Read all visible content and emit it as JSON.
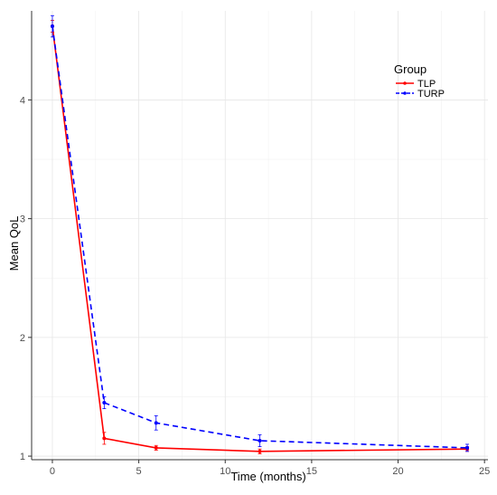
{
  "chart_data": {
    "type": "line",
    "title": "",
    "xlabel": "Time (months)",
    "ylabel": "Mean QoL",
    "xlim": [
      -1.2,
      25.2
    ],
    "ylim": [
      0.97,
      4.75
    ],
    "x_ticks": [
      0,
      5,
      10,
      15,
      20,
      25
    ],
    "y_ticks": [
      1,
      2,
      3,
      4
    ],
    "grid": true,
    "legend": {
      "title": "Group",
      "placement": "top-right inside"
    },
    "series": [
      {
        "name": "TLP",
        "color": "#ff0000",
        "line_style": "solid",
        "x": [
          0,
          3,
          6,
          12,
          24
        ],
        "y": [
          4.62,
          1.15,
          1.07,
          1.04,
          1.06
        ],
        "error": [
          0.05,
          0.05,
          0.02,
          0.02,
          0.02
        ]
      },
      {
        "name": "TURP",
        "color": "#0000ff",
        "line_style": "dashed",
        "x": [
          0,
          3,
          6,
          12,
          24
        ],
        "y": [
          4.62,
          1.45,
          1.28,
          1.13,
          1.07
        ],
        "error": [
          0.09,
          0.05,
          0.06,
          0.05,
          0.03
        ]
      }
    ]
  }
}
